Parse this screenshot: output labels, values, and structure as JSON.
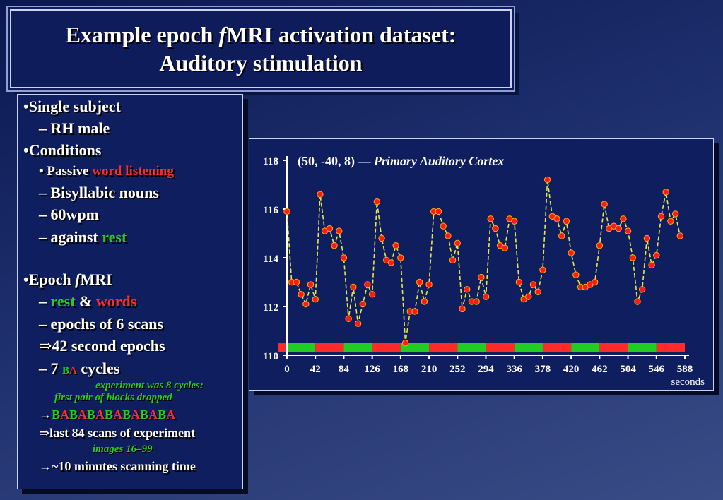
{
  "title": {
    "line1_pre": "Example epoch ",
    "line1_italic": "f",
    "line1_post": "MRI activation dataset:",
    "line2": "Auditory stimulation"
  },
  "left": {
    "single_subject": "•Single subject",
    "rh_male": "– RH male",
    "conditions": "•Conditions",
    "passive_pre": "• Passive ",
    "passive_red": "word listening",
    "bisyllabic": "– Bisyllabic nouns",
    "wpm": "– 60wpm",
    "against_pre": "– against ",
    "against_green": "rest",
    "epoch_pre": "•Epoch ",
    "epoch_italic": "f",
    "epoch_post": "MRI",
    "rest_words_dash": "– ",
    "rest": "rest",
    "amp": " & ",
    "words": "words",
    "epochs_scans": "– epochs of 6 scans",
    "second_epochs": "⇒42 second epochs",
    "cycles_pre": "– 7 ",
    "cycles_b": "B",
    "cycles_a": "A",
    "cycles_post": " cycles",
    "note1": "experiment was 8 cycles:",
    "note2": "first pair of blocks dropped",
    "arrow1": "→",
    "baba": [
      "B",
      "A",
      "B",
      "A",
      "B",
      "A",
      "B",
      "A",
      "B",
      "A",
      "B",
      "A",
      "B",
      "A"
    ],
    "last84": "⇒last 84 scans of experiment",
    "images": "images 16–99",
    "minutes": "→~10 minutes scanning time"
  },
  "colors": {
    "red": "#ff2a2a",
    "green": "#22cc22",
    "trace": "#e8e84a",
    "point": "#ff1a1a"
  },
  "chart_data": {
    "type": "line",
    "title": "(50, -40, 8) — Primary Auditory Cortex",
    "title_plain": "(50, -40, 8) — ",
    "title_italic": "Primary Auditory Cortex",
    "xlabel": "seconds",
    "ylabel": "",
    "xlim": [
      0,
      588
    ],
    "ylim": [
      110,
      118
    ],
    "xticks": [
      0,
      42,
      84,
      126,
      168,
      210,
      252,
      294,
      336,
      378,
      420,
      462,
      504,
      546,
      588
    ],
    "yticks": [
      110,
      112,
      114,
      116,
      118
    ],
    "series": [
      {
        "name": "",
        "values": [
          115.9,
          113.0,
          113.0,
          112.5,
          112.1,
          112.9,
          112.3,
          116.6,
          115.1,
          115.2,
          114.5,
          115.1,
          114.0,
          111.5,
          112.8,
          111.3,
          112.1,
          112.9,
          112.5,
          116.3,
          114.8,
          113.9,
          113.8,
          114.5,
          114.0,
          110.5,
          111.8,
          111.8,
          113.0,
          112.2,
          112.9,
          115.9,
          115.9,
          115.3,
          114.9,
          113.9,
          114.6,
          111.9,
          112.7,
          112.2,
          112.2,
          113.2,
          112.4,
          115.6,
          115.2,
          114.5,
          114.4,
          115.6,
          115.5,
          113.0,
          112.3,
          112.4,
          112.9,
          112.6,
          113.5,
          117.2,
          115.7,
          115.6,
          114.9,
          115.5,
          114.2,
          113.3,
          112.8,
          112.8,
          112.9,
          113.0,
          114.5,
          116.2,
          115.2,
          115.3,
          115.2,
          115.6,
          115.1,
          114.0,
          112.2,
          112.7,
          114.8,
          113.7,
          114.1,
          115.7,
          116.7,
          115.5,
          115.8,
          114.9
        ]
      }
    ],
    "blocks": [
      "B",
      "A",
      "B",
      "A",
      "B",
      "A",
      "B",
      "A",
      "B",
      "A",
      "B",
      "A",
      "B",
      "A"
    ],
    "block_seconds": 42,
    "grid": false
  }
}
